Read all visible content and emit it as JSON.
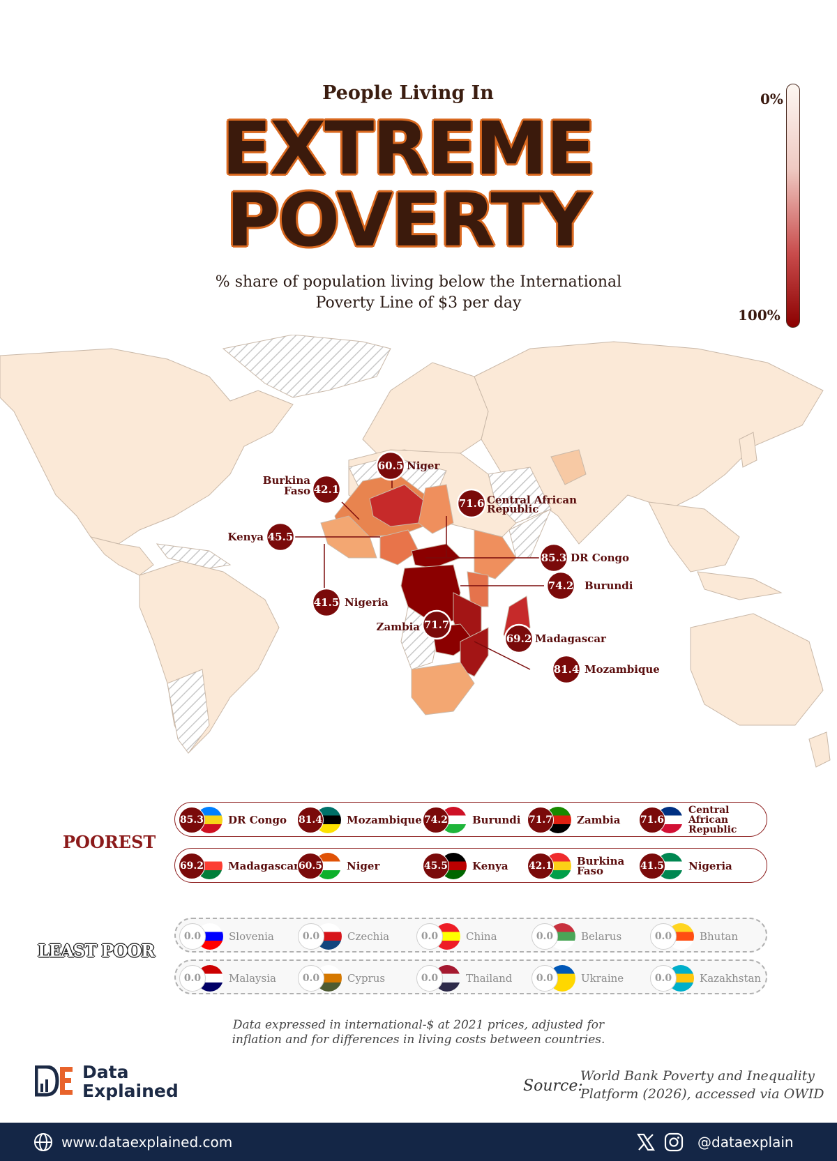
{
  "title": {
    "kicker": "People Living In",
    "line1": "EXTREME",
    "line2": "POVERTY",
    "subtitle_line1": "% share of population living below the International",
    "subtitle_line2": "Poverty Line of $3 per day"
  },
  "legend": {
    "min_label": "0%",
    "max_label": "100%",
    "low_color": "#fdf7f2",
    "high_color": "#8b0000"
  },
  "map_callouts": [
    {
      "country": "Niger",
      "value": "60.5"
    },
    {
      "country": "Burkina Faso",
      "name_line1": "Burkina",
      "name_line2": "Faso",
      "value": "42.1"
    },
    {
      "country": "Central African Republic",
      "name_line1": "Central African",
      "name_line2": "Republic",
      "value": "71.6"
    },
    {
      "country": "Kenya",
      "value": "45.5"
    },
    {
      "country": "DR Congo",
      "value": "85.3"
    },
    {
      "country": "Burundi",
      "value": "74.2"
    },
    {
      "country": "Nigeria",
      "value": "41.5"
    },
    {
      "country": "Zambia",
      "value": "71.7"
    },
    {
      "country": "Madagascar",
      "value": "69.2"
    },
    {
      "country": "Mozambique",
      "value": "81.4"
    }
  ],
  "poorest": {
    "label": "POOREST",
    "row1": [
      {
        "value": "85.3",
        "name": "DR Congo",
        "flag": [
          "#007fff",
          "#f7d618",
          "#ce1021"
        ]
      },
      {
        "value": "81.4",
        "name": "Mozambique",
        "flag": [
          "#007168",
          "#000000",
          "#fce100"
        ]
      },
      {
        "value": "74.2",
        "name": "Burundi",
        "flag": [
          "#ce1126",
          "#ffffff",
          "#1eb53a"
        ]
      },
      {
        "value": "71.7",
        "name": "Zambia",
        "flag": [
          "#198a00",
          "#de2010",
          "#000000"
        ]
      },
      {
        "value": "71.6",
        "name_line1": "Central African",
        "name_line2": "Republic",
        "flag": [
          "#003082",
          "#ffffff",
          "#d21034"
        ]
      }
    ],
    "row2": [
      {
        "value": "69.2",
        "name": "Madagascar",
        "flag": [
          "#ffffff",
          "#fc3d32",
          "#007e3a"
        ]
      },
      {
        "value": "60.5",
        "name": "Niger",
        "flag": [
          "#e05206",
          "#ffffff",
          "#0db02b"
        ]
      },
      {
        "value": "45.5",
        "name": "Kenya",
        "flag": [
          "#000000",
          "#bb0000",
          "#006600"
        ]
      },
      {
        "value": "42.1",
        "name_line1": "Burkina",
        "name_line2": "Faso",
        "flag": [
          "#ef2b2d",
          "#fcd116",
          "#009e49"
        ]
      },
      {
        "value": "41.5",
        "name": "Nigeria",
        "flag": [
          "#008751",
          "#ffffff",
          "#008751"
        ]
      }
    ]
  },
  "least_poor": {
    "label": "LEAST POOR",
    "row1": [
      {
        "value": "0.0",
        "name": "Slovenia",
        "flag": [
          "#ffffff",
          "#0000ff",
          "#ff0000"
        ]
      },
      {
        "value": "0.0",
        "name": "Czechia",
        "flag": [
          "#ffffff",
          "#d7141a",
          "#11457e"
        ]
      },
      {
        "value": "0.0",
        "name": "China",
        "flag": [
          "#ee1c25",
          "#ffff00",
          "#ee1c25"
        ]
      },
      {
        "value": "0.0",
        "name": "Belarus",
        "flag": [
          "#c8313e",
          "#4aa657",
          "#ffffff"
        ]
      },
      {
        "value": "0.0",
        "name": "Bhutan",
        "flag": [
          "#ffd520",
          "#ff4e12",
          "#ffffff"
        ]
      }
    ],
    "row2": [
      {
        "value": "0.0",
        "name": "Malaysia",
        "flag": [
          "#cc0001",
          "#ffffff",
          "#010066"
        ]
      },
      {
        "value": "0.0",
        "name": "Cyprus",
        "flag": [
          "#ffffff",
          "#d57800",
          "#4e5b31"
        ]
      },
      {
        "value": "0.0",
        "name": "Thailand",
        "flag": [
          "#a51931",
          "#f4f5f8",
          "#2d2a4a"
        ]
      },
      {
        "value": "0.0",
        "name": "Ukraine",
        "flag": [
          "#0057b7",
          "#ffd700",
          "#ffd700"
        ]
      },
      {
        "value": "0.0",
        "name": "Kazakhstan",
        "flag": [
          "#00afca",
          "#fec50c",
          "#00afca"
        ]
      }
    ]
  },
  "footnote": {
    "line1": "Data expressed in international-$ at 2021 prices, adjusted for",
    "line2": "inflation and for differences in living costs between countries."
  },
  "brand": {
    "name_line1": "Data",
    "name_line2": "Explained"
  },
  "source": {
    "label": "Source:",
    "line1": "World Bank Poverty and Inequality",
    "line2": "Platform (2026), accessed via OWID"
  },
  "footer": {
    "website": "www.dataexplained.com",
    "handle": "@dataexplain"
  }
}
